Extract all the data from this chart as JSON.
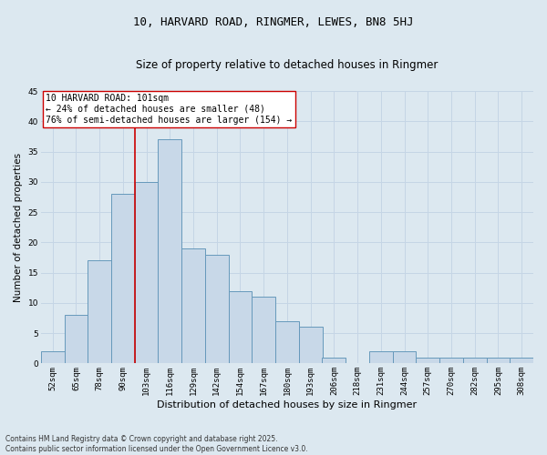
{
  "title1": "10, HARVARD ROAD, RINGMER, LEWES, BN8 5HJ",
  "title2": "Size of property relative to detached houses in Ringmer",
  "xlabel": "Distribution of detached houses by size in Ringmer",
  "ylabel": "Number of detached properties",
  "categories": [
    "52sqm",
    "65sqm",
    "78sqm",
    "90sqm",
    "103sqm",
    "116sqm",
    "129sqm",
    "142sqm",
    "154sqm",
    "167sqm",
    "180sqm",
    "193sqm",
    "206sqm",
    "218sqm",
    "231sqm",
    "244sqm",
    "257sqm",
    "270sqm",
    "282sqm",
    "295sqm",
    "308sqm"
  ],
  "values": [
    2,
    8,
    17,
    28,
    30,
    37,
    19,
    18,
    12,
    11,
    7,
    6,
    1,
    0,
    2,
    2,
    1,
    1,
    1,
    1,
    1
  ],
  "bar_color": "#c8d8e8",
  "bar_edge_color": "#6699bb",
  "vline_color": "#cc0000",
  "annotation_text": "10 HARVARD ROAD: 101sqm\n← 24% of detached houses are smaller (48)\n76% of semi-detached houses are larger (154) →",
  "annotation_box_color": "#ffffff",
  "annotation_box_edge": "#cc0000",
  "grid_color": "#c5d5e5",
  "background_color": "#dce8f0",
  "footnote": "Contains HM Land Registry data © Crown copyright and database right 2025.\nContains public sector information licensed under the Open Government Licence v3.0.",
  "ylim": [
    0,
    45
  ],
  "yticks": [
    0,
    5,
    10,
    15,
    20,
    25,
    30,
    35,
    40,
    45
  ],
  "title1_fontsize": 9,
  "title2_fontsize": 8.5,
  "xlabel_fontsize": 8,
  "ylabel_fontsize": 7.5,
  "tick_fontsize": 6.5,
  "annot_fontsize": 7,
  "footnote_fontsize": 5.5
}
